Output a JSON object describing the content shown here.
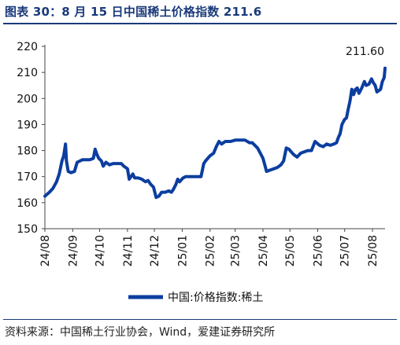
{
  "title": "图表 30：8 月 15 日中国稀土价格指数 211.6",
  "source": "资料来源：中国稀土行业协会，Wind，爱建证券研究所",
  "colors": {
    "title": "#1a3a7a",
    "line": "#0c3ea0",
    "axis": "#444444",
    "text": "#111111"
  },
  "chart_data": {
    "type": "line",
    "ylim": [
      150,
      220
    ],
    "yticks": [
      150,
      160,
      170,
      180,
      190,
      200,
      210,
      220
    ],
    "xlim": [
      "2024-08-01",
      "2025-08-15"
    ],
    "xticks": [
      {
        "date": "2024-08-01",
        "label": "24/08"
      },
      {
        "date": "2024-09-01",
        "label": "24/09"
      },
      {
        "date": "2024-10-01",
        "label": "24/10"
      },
      {
        "date": "2024-11-01",
        "label": "24/11"
      },
      {
        "date": "2024-12-01",
        "label": "24/12"
      },
      {
        "date": "2025-01-01",
        "label": "25/01"
      },
      {
        "date": "2025-02-01",
        "label": "25/02"
      },
      {
        "date": "2025-03-01",
        "label": "25/03"
      },
      {
        "date": "2025-04-01",
        "label": "25/04"
      },
      {
        "date": "2025-05-01",
        "label": "25/05"
      },
      {
        "date": "2025-06-01",
        "label": "25/06"
      },
      {
        "date": "2025-07-01",
        "label": "25/07"
      },
      {
        "date": "2025-08-01",
        "label": "25/08"
      }
    ],
    "series": [
      {
        "name": "中国:价格指数:稀土",
        "points": [
          [
            "2024-08-01",
            162.5
          ],
          [
            "2024-08-06",
            164
          ],
          [
            "2024-08-10",
            165.5
          ],
          [
            "2024-08-14",
            168
          ],
          [
            "2024-08-17",
            171
          ],
          [
            "2024-08-20",
            176
          ],
          [
            "2024-08-22",
            178
          ],
          [
            "2024-08-24",
            182.5
          ],
          [
            "2024-08-25",
            176
          ],
          [
            "2024-08-27",
            172
          ],
          [
            "2024-08-30",
            171.5
          ],
          [
            "2024-09-03",
            172
          ],
          [
            "2024-09-06",
            175.5
          ],
          [
            "2024-09-12",
            176.5
          ],
          [
            "2024-09-20",
            176.5
          ],
          [
            "2024-09-24",
            177
          ],
          [
            "2024-09-26",
            180.5
          ],
          [
            "2024-09-28",
            178.5
          ],
          [
            "2024-09-30",
            177
          ],
          [
            "2024-10-03",
            176
          ],
          [
            "2024-10-05",
            174
          ],
          [
            "2024-10-08",
            175.5
          ],
          [
            "2024-10-12",
            174.5
          ],
          [
            "2024-10-16",
            175
          ],
          [
            "2024-10-20",
            175
          ],
          [
            "2024-10-25",
            175
          ],
          [
            "2024-10-28",
            174
          ],
          [
            "2024-11-01",
            173
          ],
          [
            "2024-11-03",
            169
          ],
          [
            "2024-11-05",
            170
          ],
          [
            "2024-11-07",
            171
          ],
          [
            "2024-11-09",
            169.5
          ],
          [
            "2024-11-13",
            169.5
          ],
          [
            "2024-11-17",
            169
          ],
          [
            "2024-11-21",
            168
          ],
          [
            "2024-11-24",
            168.5
          ],
          [
            "2024-11-27",
            167
          ],
          [
            "2024-11-30",
            166
          ],
          [
            "2024-12-03",
            162
          ],
          [
            "2024-12-06",
            162.5
          ],
          [
            "2024-12-09",
            164
          ],
          [
            "2024-12-13",
            164
          ],
          [
            "2024-12-17",
            164.5
          ],
          [
            "2024-12-20",
            164
          ],
          [
            "2024-12-22",
            165
          ],
          [
            "2024-12-25",
            167
          ],
          [
            "2024-12-27",
            169
          ],
          [
            "2024-12-29",
            168
          ],
          [
            "2025-01-02",
            169.5
          ],
          [
            "2025-01-05",
            170
          ],
          [
            "2025-01-10",
            170
          ],
          [
            "2025-01-15",
            170
          ],
          [
            "2025-01-20",
            170
          ],
          [
            "2025-01-22",
            170
          ],
          [
            "2025-01-25",
            175
          ],
          [
            "2025-01-27",
            176
          ],
          [
            "2025-02-01",
            178
          ],
          [
            "2025-02-05",
            179
          ],
          [
            "2025-02-08",
            181.5
          ],
          [
            "2025-02-11",
            183.5
          ],
          [
            "2025-02-14",
            182.5
          ],
          [
            "2025-02-18",
            183.5
          ],
          [
            "2025-02-24",
            183.5
          ],
          [
            "2025-03-01",
            184
          ],
          [
            "2025-03-06",
            184
          ],
          [
            "2025-03-12",
            184
          ],
          [
            "2025-03-17",
            183
          ],
          [
            "2025-03-20",
            183
          ],
          [
            "2025-03-23",
            182
          ],
          [
            "2025-03-26",
            181
          ],
          [
            "2025-03-29",
            179
          ],
          [
            "2025-04-01",
            177
          ],
          [
            "2025-04-03",
            174.5
          ],
          [
            "2025-04-05",
            172
          ],
          [
            "2025-04-09",
            172.5
          ],
          [
            "2025-04-13",
            173
          ],
          [
            "2025-04-17",
            173.5
          ],
          [
            "2025-04-21",
            174.5
          ],
          [
            "2025-04-24",
            176
          ],
          [
            "2025-04-27",
            181
          ],
          [
            "2025-04-30",
            180.5
          ],
          [
            "2025-05-05",
            178.5
          ],
          [
            "2025-05-09",
            177.5
          ],
          [
            "2025-05-13",
            179
          ],
          [
            "2025-05-17",
            179.5
          ],
          [
            "2025-05-21",
            180
          ],
          [
            "2025-05-25",
            180
          ],
          [
            "2025-05-29",
            183.5
          ],
          [
            "2025-06-03",
            182
          ],
          [
            "2025-06-07",
            181.5
          ],
          [
            "2025-06-11",
            182.5
          ],
          [
            "2025-06-15",
            182
          ],
          [
            "2025-06-19",
            182.5
          ],
          [
            "2025-06-22",
            183
          ],
          [
            "2025-06-24",
            185
          ],
          [
            "2025-06-26",
            186.5
          ],
          [
            "2025-06-28",
            190
          ],
          [
            "2025-07-01",
            192
          ],
          [
            "2025-07-03",
            192.5
          ],
          [
            "2025-07-05",
            196
          ],
          [
            "2025-07-07",
            199
          ],
          [
            "2025-07-09",
            203.5
          ],
          [
            "2025-07-11",
            201.5
          ],
          [
            "2025-07-13",
            203.5
          ],
          [
            "2025-07-15",
            204
          ],
          [
            "2025-07-17",
            202
          ],
          [
            "2025-07-20",
            204
          ],
          [
            "2025-07-23",
            206.5
          ],
          [
            "2025-07-25",
            205
          ],
          [
            "2025-07-28",
            205.5
          ],
          [
            "2025-07-31",
            207.5
          ],
          [
            "2025-08-02",
            206
          ],
          [
            "2025-08-04",
            205
          ],
          [
            "2025-08-06",
            202.5
          ],
          [
            "2025-08-08",
            203
          ],
          [
            "2025-08-10",
            203.5
          ],
          [
            "2025-08-12",
            206.5
          ],
          [
            "2025-08-14",
            208
          ],
          [
            "2025-08-15",
            211.6
          ]
        ]
      }
    ],
    "annotation": {
      "text": "211.60",
      "date": "2025-08-15",
      "value": 211.6
    },
    "legend": {
      "placement": "bottom-center"
    },
    "grid": false
  }
}
